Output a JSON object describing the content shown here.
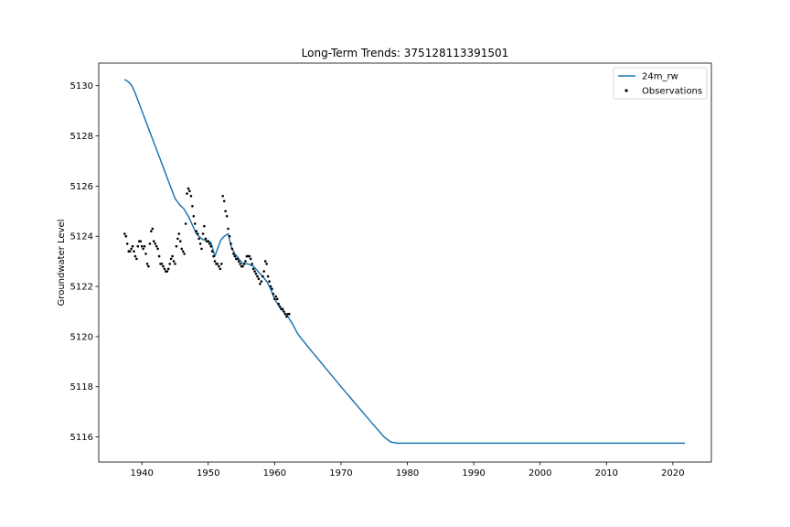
{
  "chart_data": {
    "type": "line",
    "title": "Long-Term Trends: 375128113391501",
    "xlabel": "",
    "ylabel": "Groundwater Level",
    "xlim": [
      1933.5,
      2025.8
    ],
    "ylim": [
      5115.0,
      5130.9
    ],
    "xticks": [
      1940,
      1950,
      1960,
      1970,
      1980,
      1990,
      2000,
      2010,
      2020
    ],
    "yticks": [
      5116,
      5118,
      5120,
      5122,
      5124,
      5126,
      5128,
      5130
    ],
    "grid": false,
    "legend_position": "top-right",
    "colors": {
      "line": "#1f77b4",
      "points": "#000000",
      "axes": "#000000",
      "background": "#ffffff"
    },
    "series": [
      {
        "name": "24m_rw",
        "kind": "line",
        "x": [
          1937.4,
          1938.0,
          1938.5,
          1939.0,
          1940.0,
          1941.0,
          1942.0,
          1943.0,
          1944.0,
          1945.0,
          1945.7,
          1946.3,
          1947.0,
          1947.6,
          1948.2,
          1949.0,
          1949.8,
          1950.4,
          1951.0,
          1951.4,
          1951.9,
          1952.4,
          1953.0,
          1953.5,
          1954.0,
          1954.6,
          1955.2,
          1956.0,
          1956.8,
          1957.5,
          1958.2,
          1958.8,
          1959.4,
          1960.0,
          1960.7,
          1961.3,
          1962.0,
          1962.7,
          1963.5,
          1965.0,
          1970.0,
          1975.0,
          1976.5,
          1977.5,
          1978.5,
          1985.0,
          1995.0,
          2005.0,
          2015.0,
          2021.8
        ],
        "values": [
          5130.25,
          5130.15,
          5130.0,
          5129.7,
          5129.0,
          5128.3,
          5127.6,
          5126.9,
          5126.2,
          5125.5,
          5125.25,
          5125.1,
          5124.8,
          5124.45,
          5124.1,
          5123.9,
          5123.8,
          5123.75,
          5123.2,
          5123.5,
          5123.85,
          5124.0,
          5124.1,
          5123.55,
          5123.3,
          5123.1,
          5122.9,
          5122.9,
          5122.8,
          5122.6,
          5122.4,
          5122.2,
          5121.9,
          5121.5,
          5121.2,
          5121.0,
          5120.8,
          5120.5,
          5120.1,
          5119.6,
          5118.0,
          5116.45,
          5116.0,
          5115.8,
          5115.75,
          5115.75,
          5115.75,
          5115.75,
          5115.75,
          5115.75
        ]
      },
      {
        "name": "Observations",
        "kind": "scatter",
        "x": [
          1937.4,
          1937.6,
          1937.8,
          1938.0,
          1938.2,
          1938.4,
          1938.6,
          1938.8,
          1939.0,
          1939.2,
          1939.4,
          1939.6,
          1939.8,
          1940.0,
          1940.2,
          1940.4,
          1940.6,
          1940.8,
          1941.0,
          1941.2,
          1941.4,
          1941.6,
          1941.8,
          1942.0,
          1942.2,
          1942.4,
          1942.6,
          1942.8,
          1943.0,
          1943.2,
          1943.4,
          1943.6,
          1943.8,
          1944.0,
          1944.2,
          1944.4,
          1944.6,
          1944.8,
          1945.0,
          1945.2,
          1945.4,
          1945.6,
          1945.8,
          1946.0,
          1946.2,
          1946.4,
          1946.6,
          1946.8,
          1947.0,
          1947.2,
          1947.4,
          1947.6,
          1947.8,
          1948.0,
          1948.2,
          1948.4,
          1948.6,
          1948.8,
          1949.0,
          1949.2,
          1949.4,
          1949.6,
          1949.8,
          1950.0,
          1950.2,
          1950.4,
          1950.6,
          1950.8,
          1951.0,
          1951.2,
          1951.4,
          1951.6,
          1951.8,
          1952.0,
          1952.2,
          1952.4,
          1952.6,
          1952.8,
          1953.0,
          1953.2,
          1953.4,
          1953.6,
          1953.8,
          1954.0,
          1954.2,
          1954.4,
          1954.6,
          1954.8,
          1955.0,
          1955.2,
          1955.4,
          1955.6,
          1955.8,
          1956.0,
          1956.2,
          1956.4,
          1956.6,
          1956.8,
          1957.0,
          1957.2,
          1957.4,
          1957.6,
          1957.8,
          1958.0,
          1958.2,
          1958.4,
          1958.6,
          1958.8,
          1959.0,
          1959.2,
          1959.4,
          1959.6,
          1959.8,
          1960.0,
          1960.2,
          1960.4,
          1960.6,
          1960.8,
          1961.0,
          1961.2,
          1961.4,
          1961.6,
          1961.8,
          1962.0,
          1962.2
        ],
        "values": [
          5124.1,
          5124.0,
          5123.7,
          5123.4,
          5123.4,
          5123.5,
          5123.6,
          5123.4,
          5123.2,
          5123.1,
          5123.6,
          5123.8,
          5123.8,
          5123.6,
          5123.5,
          5123.6,
          5123.3,
          5122.9,
          5122.8,
          5123.7,
          5124.2,
          5124.3,
          5123.8,
          5123.7,
          5123.6,
          5123.5,
          5123.2,
          5122.9,
          5122.9,
          5122.8,
          5122.7,
          5122.6,
          5122.6,
          5122.7,
          5122.9,
          5123.1,
          5123.2,
          5123.0,
          5122.9,
          5123.6,
          5123.9,
          5124.1,
          5123.8,
          5123.5,
          5123.4,
          5123.3,
          5124.5,
          5125.7,
          5125.9,
          5125.8,
          5125.6,
          5125.2,
          5124.8,
          5124.5,
          5124.2,
          5124.1,
          5123.9,
          5123.7,
          5123.5,
          5124.1,
          5124.4,
          5123.9,
          5123.8,
          5123.8,
          5123.7,
          5123.6,
          5123.4,
          5123.2,
          5123.0,
          5122.9,
          5122.9,
          5122.8,
          5122.7,
          5122.9,
          5125.6,
          5125.4,
          5125.0,
          5124.8,
          5124.3,
          5124.0,
          5123.7,
          5123.5,
          5123.3,
          5123.2,
          5123.1,
          5123.1,
          5123.0,
          5122.9,
          5122.8,
          5122.8,
          5122.9,
          5123.0,
          5123.2,
          5123.2,
          5123.2,
          5123.1,
          5122.9,
          5122.7,
          5122.6,
          5122.5,
          5122.4,
          5122.3,
          5122.1,
          5122.2,
          5122.4,
          5122.6,
          5123.0,
          5122.9,
          5122.4,
          5122.2,
          5122.0,
          5121.9,
          5121.7,
          5121.5,
          5121.6,
          5121.5,
          5121.3,
          5121.2,
          5121.1,
          5121.1,
          5121.0,
          5120.9,
          5120.8,
          5120.9,
          5120.9
        ]
      }
    ]
  }
}
